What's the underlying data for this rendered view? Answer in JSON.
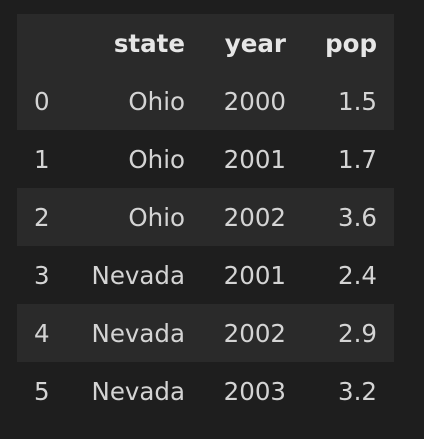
{
  "dataframe": {
    "columns": [
      "state",
      "year",
      "pop"
    ],
    "rows": [
      {
        "index": "0",
        "state": "Ohio",
        "year": "2000",
        "pop": "1.5"
      },
      {
        "index": "1",
        "state": "Ohio",
        "year": "2001",
        "pop": "1.7"
      },
      {
        "index": "2",
        "state": "Ohio",
        "year": "2002",
        "pop": "3.6"
      },
      {
        "index": "3",
        "state": "Nevada",
        "year": "2001",
        "pop": "2.4"
      },
      {
        "index": "4",
        "state": "Nevada",
        "year": "2002",
        "pop": "2.9"
      },
      {
        "index": "5",
        "state": "Nevada",
        "year": "2003",
        "pop": "3.2"
      }
    ]
  }
}
